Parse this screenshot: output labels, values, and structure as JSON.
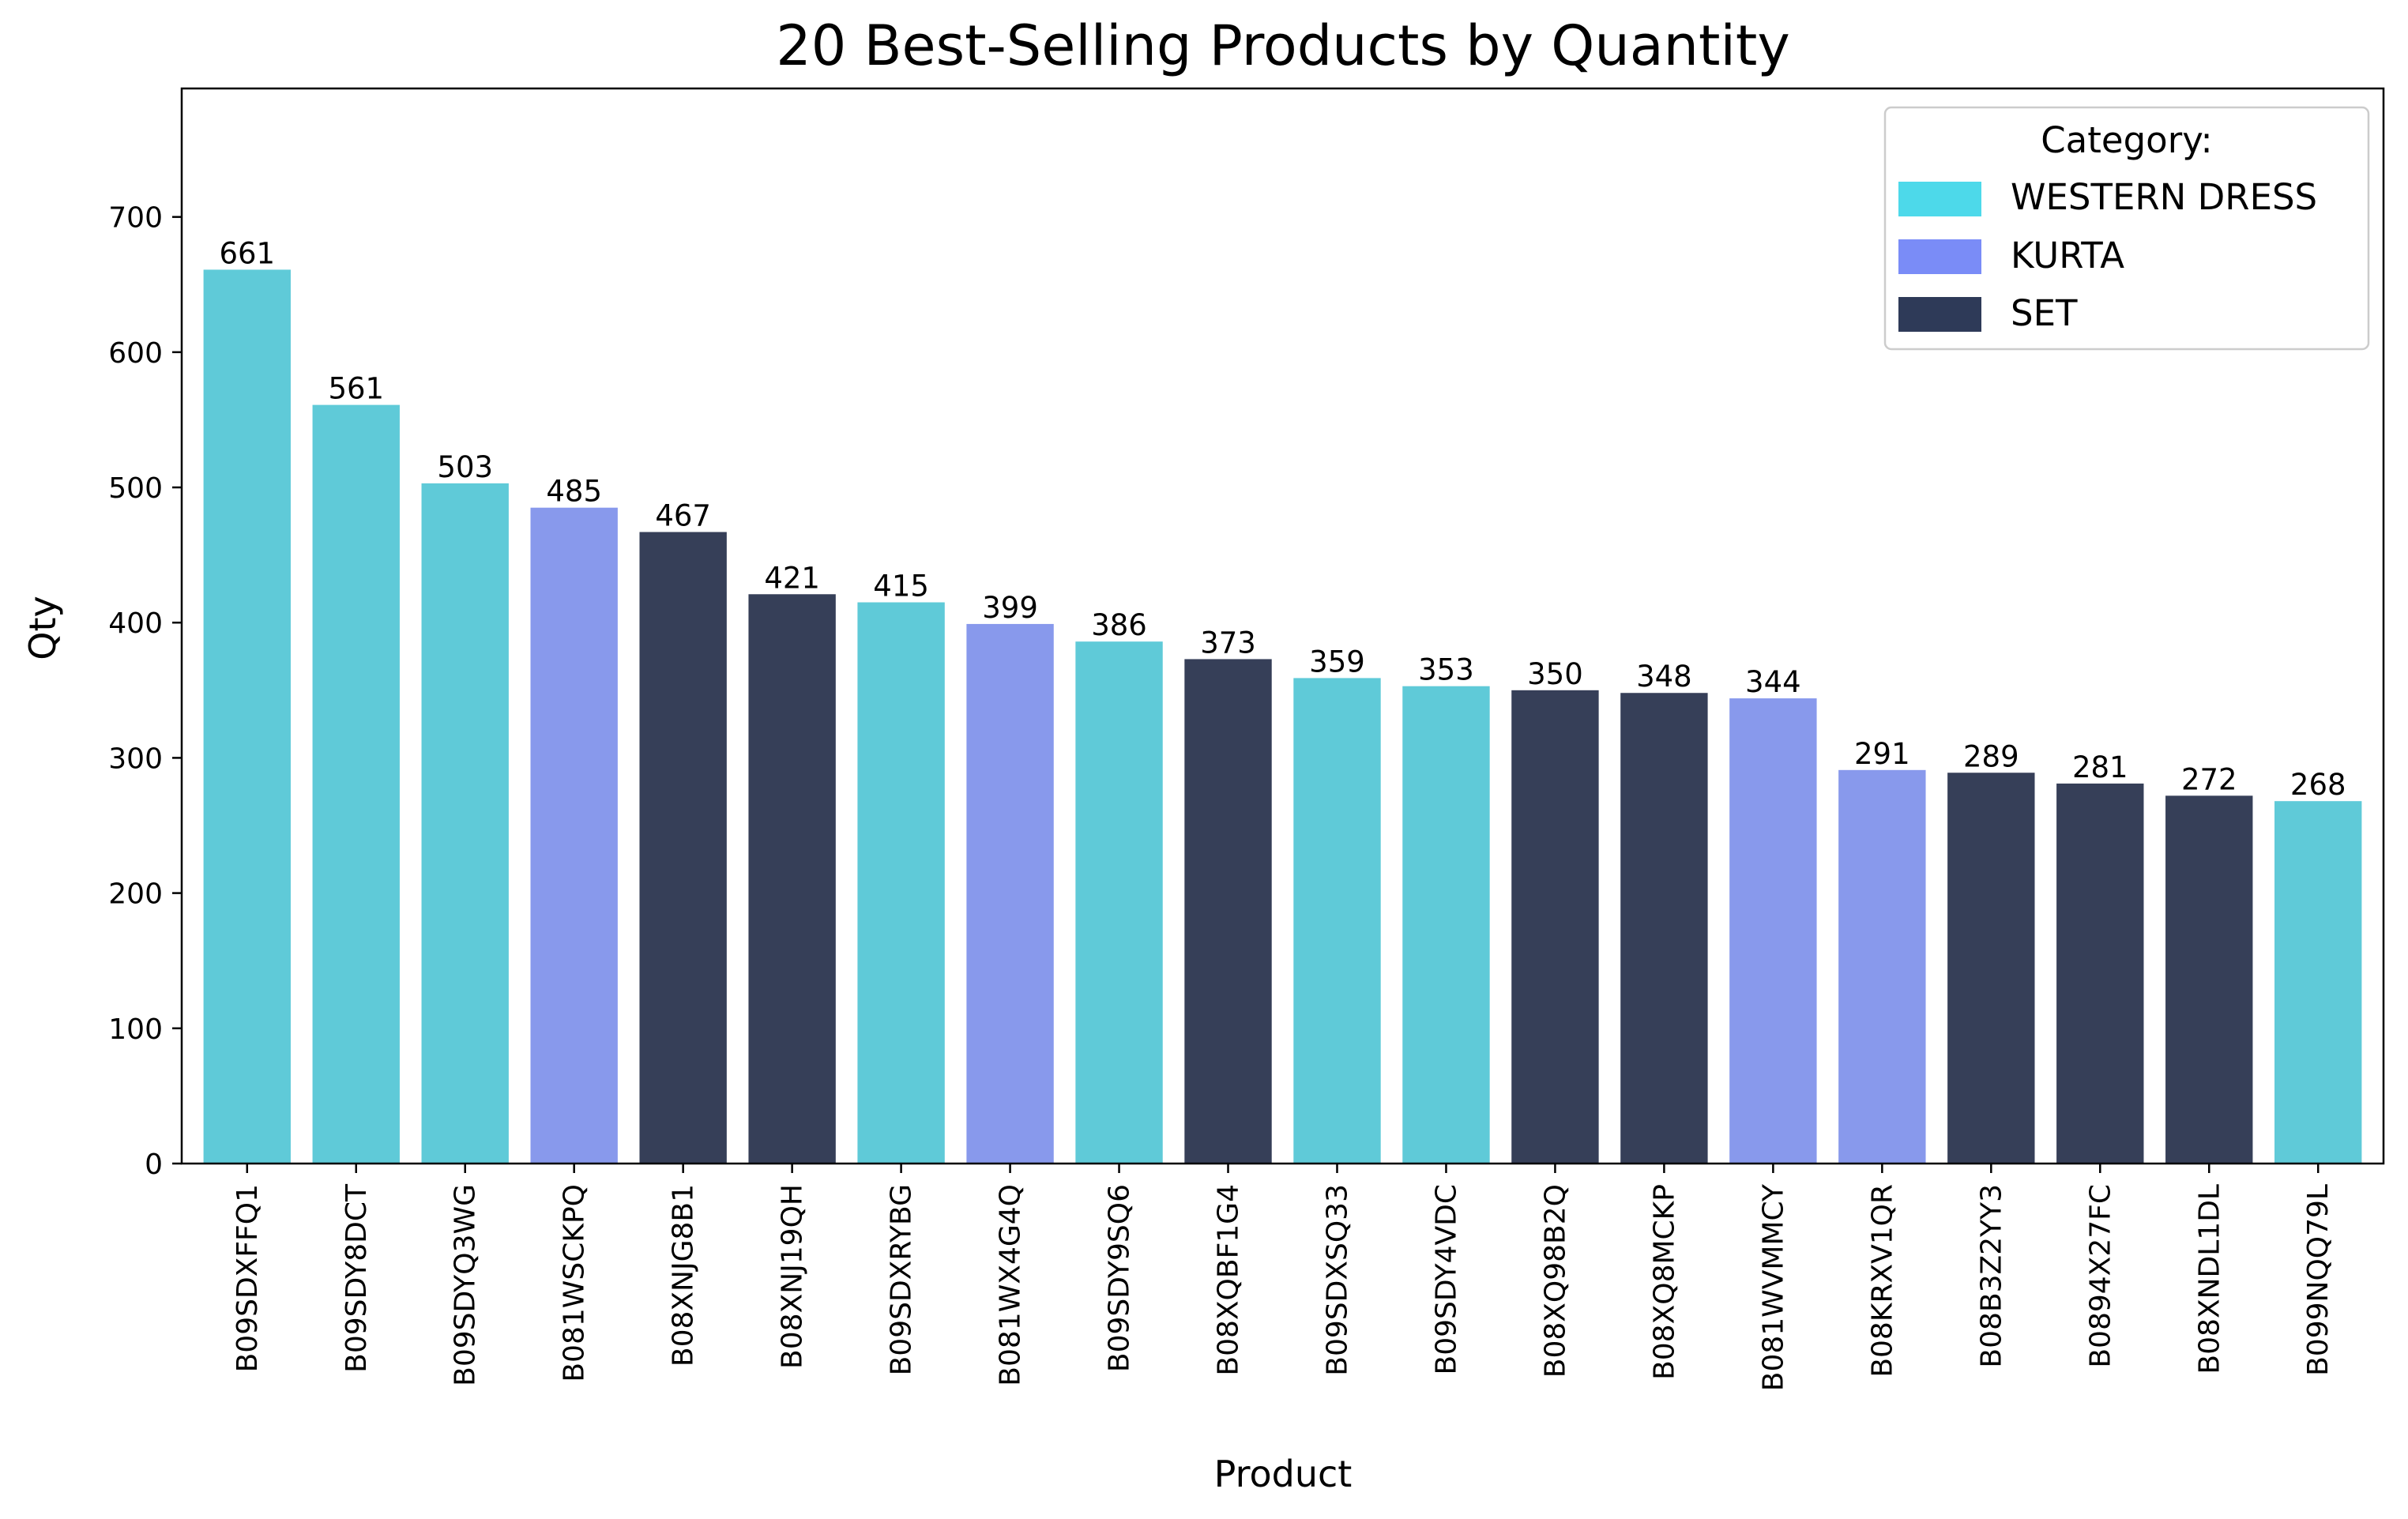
{
  "chart_data": {
    "type": "bar",
    "title": "20 Best-Selling Products by Quantity",
    "xlabel": "Product",
    "ylabel": "Qty",
    "ylim": [
      0,
      795
    ],
    "yticks": [
      0,
      100,
      200,
      300,
      400,
      500,
      600,
      700
    ],
    "grid": false,
    "legend": {
      "title": "Category:",
      "placement": "top-right",
      "entries": [
        {
          "name": "WESTERN DRESS",
          "color": "#5fcad8",
          "swatch_color": "#4dd9ea"
        },
        {
          "name": "KURTA",
          "color": "#8899ec",
          "swatch_color": "#7a8cf7"
        },
        {
          "name": "SET",
          "color": "#363f58",
          "swatch_color": "#2e3a58"
        }
      ]
    },
    "categories": [
      "B09SDXFFQ1",
      "B09SDY8DCT",
      "B09SDYQ3WG",
      "B081WSCKPQ",
      "B08XNJG8B1",
      "B08XNJ19QH",
      "B09SDXRYBG",
      "B081WX4G4Q",
      "B09SDY9SQ6",
      "B08XQBF1G4",
      "B09SDXSQ33",
      "B09SDY4VDC",
      "B08XQ98B2Q",
      "B08XQ8MCKP",
      "B081WVMMCY",
      "B08KRXV1QR",
      "B08B3Z2YY3",
      "B0894X27FC",
      "B08XNDL1DL",
      "B099NQQ79L"
    ],
    "values": [
      661,
      561,
      503,
      485,
      467,
      421,
      415,
      399,
      386,
      373,
      359,
      353,
      350,
      348,
      344,
      291,
      289,
      281,
      272,
      268
    ],
    "value_labels": [
      "661",
      "561",
      "503",
      "485",
      "467",
      "421",
      "415",
      "399",
      "386",
      "373",
      "359",
      "353",
      "350",
      "348",
      "344",
      "291",
      "289",
      "281",
      "272",
      "268"
    ],
    "bar_category": [
      "WESTERN DRESS",
      "WESTERN DRESS",
      "WESTERN DRESS",
      "KURTA",
      "SET",
      "SET",
      "WESTERN DRESS",
      "KURTA",
      "WESTERN DRESS",
      "SET",
      "WESTERN DRESS",
      "WESTERN DRESS",
      "SET",
      "SET",
      "KURTA",
      "KURTA",
      "SET",
      "SET",
      "SET",
      "WESTERN DRESS"
    ]
  }
}
